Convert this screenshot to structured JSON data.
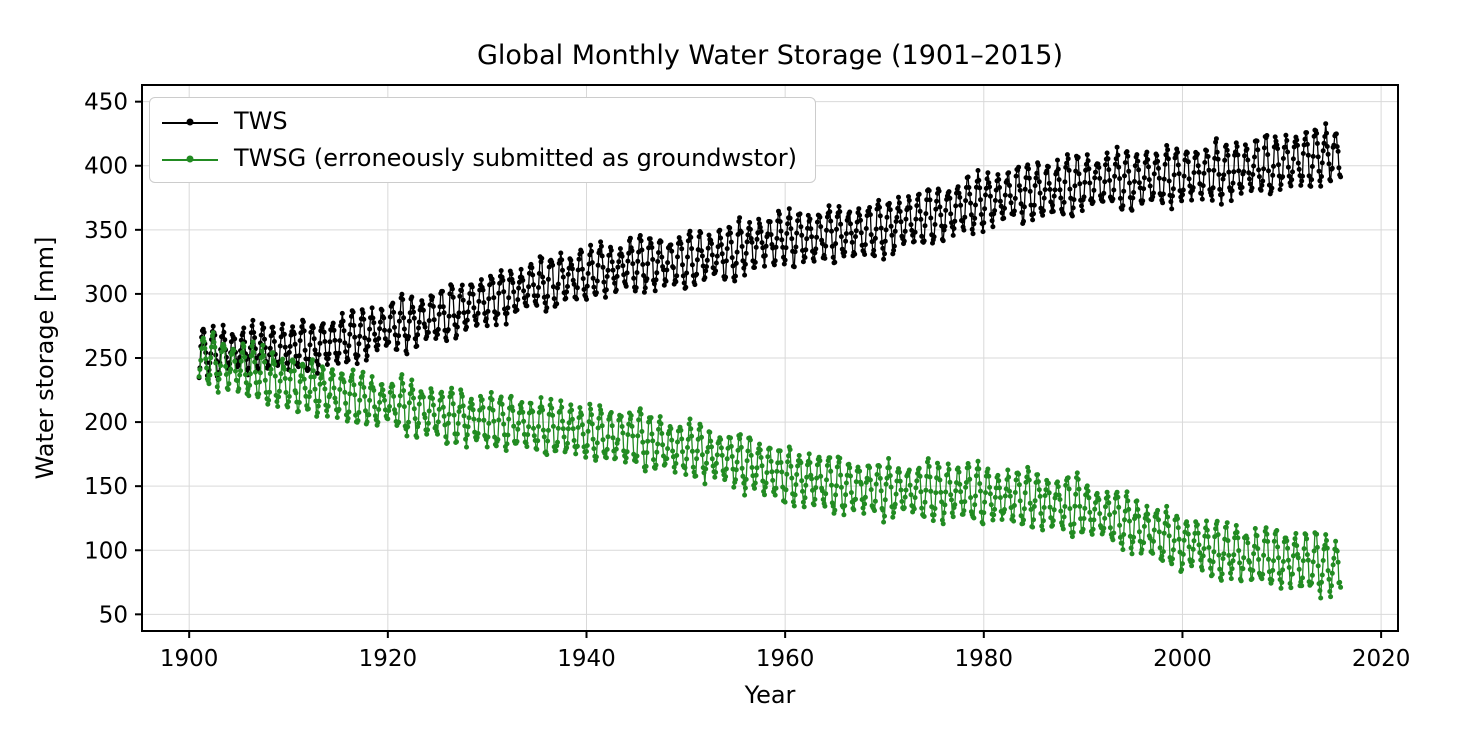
{
  "chart_data": {
    "type": "line",
    "title": "Global Monthly Water Storage (1901–2015)",
    "xlabel": "Year",
    "ylabel": "Water storage [mm]",
    "frequency": "monthly",
    "x_start": 1901,
    "x_end": 2016,
    "xlim": [
      1895.25,
      2021.7
    ],
    "ylim": [
      37,
      463
    ],
    "xticks": [
      1900,
      1920,
      1940,
      1960,
      1980,
      2000,
      2020
    ],
    "yticks": [
      50,
      100,
      150,
      200,
      250,
      300,
      350,
      400,
      450
    ],
    "grid": true,
    "grid_color": "#d9d9d9",
    "spine_color": "#000000",
    "text_color": "#000000",
    "background_color": "#ffffff",
    "legend": {
      "position": "upper left",
      "entries": [
        {
          "label": "TWS"
        },
        {
          "label": "TWSG (erroneously submitted as groundwstor)"
        }
      ]
    },
    "series": [
      {
        "name": "TWS",
        "color": "#000000",
        "marker": "dot",
        "anchors": [
          [
            1901,
            253
          ],
          [
            1905,
            257
          ],
          [
            1910,
            262
          ],
          [
            1915,
            269
          ],
          [
            1920,
            280
          ],
          [
            1925,
            287
          ],
          [
            1930,
            295
          ],
          [
            1935,
            303
          ],
          [
            1940,
            310
          ],
          [
            1945,
            317
          ],
          [
            1950,
            323
          ],
          [
            1955,
            333
          ],
          [
            1957,
            341
          ],
          [
            1960,
            346
          ],
          [
            1965,
            348
          ],
          [
            1970,
            351
          ],
          [
            1975,
            357
          ],
          [
            1980,
            366
          ],
          [
            1985,
            372
          ],
          [
            1990,
            381
          ],
          [
            1995,
            388
          ],
          [
            2000,
            395
          ],
          [
            2005,
            401
          ],
          [
            2010,
            407
          ],
          [
            2016,
            413
          ]
        ],
        "seasonal_amp": [
          17,
          20
        ],
        "phase": -1.0,
        "noise_amp": 4,
        "wobble_amp": 5,
        "seed": 7
      },
      {
        "name": "TWSG (erroneously submitted as groundwstor)",
        "color": "#228B22",
        "marker": "dot",
        "anchors": [
          [
            1901,
            246
          ],
          [
            1905,
            240
          ],
          [
            1910,
            232
          ],
          [
            1915,
            227
          ],
          [
            1920,
            221
          ],
          [
            1925,
            212
          ],
          [
            1930,
            203
          ],
          [
            1935,
            196
          ],
          [
            1940,
            190
          ],
          [
            1945,
            186
          ],
          [
            1950,
            181
          ],
          [
            1955,
            175
          ],
          [
            1960,
            166
          ],
          [
            1965,
            158
          ],
          [
            1970,
            151
          ],
          [
            1975,
            146
          ],
          [
            1980,
            140
          ],
          [
            1985,
            135
          ],
          [
            1990,
            129
          ],
          [
            1995,
            119
          ],
          [
            2000,
            108
          ],
          [
            2005,
            101
          ],
          [
            2010,
            95
          ],
          [
            2016,
            85
          ]
        ],
        "seasonal_amp": [
          18,
          20
        ],
        "phase": -1.0,
        "noise_amp": 4,
        "wobble_amp": 5,
        "seed": 13
      }
    ]
  }
}
